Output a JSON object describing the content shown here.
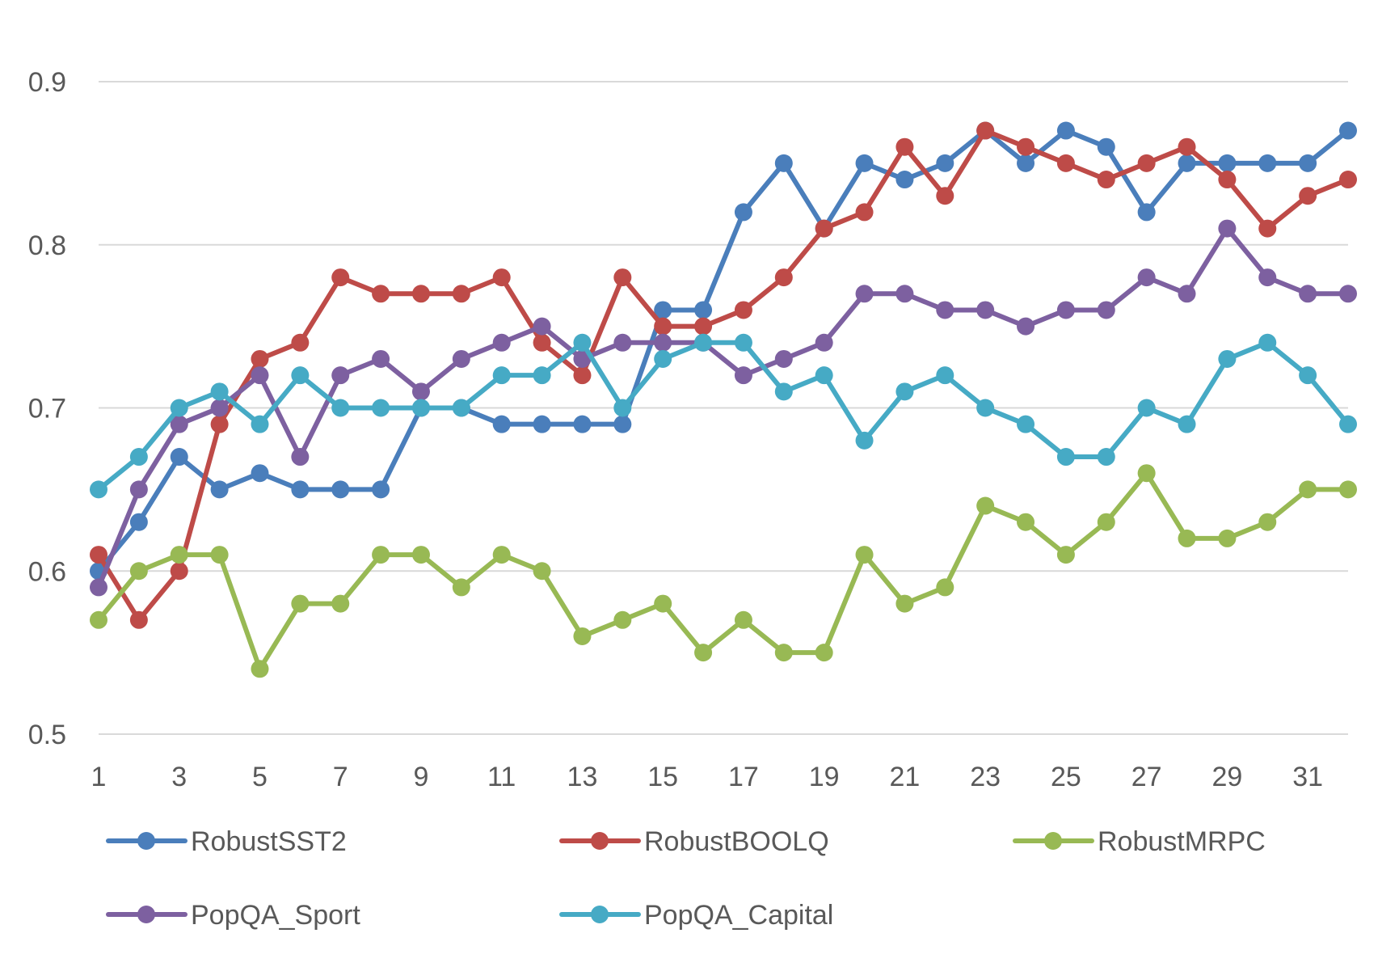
{
  "chart_data": {
    "type": "line",
    "title": "",
    "xlabel": "",
    "ylabel": "",
    "x": [
      1,
      2,
      3,
      4,
      5,
      6,
      7,
      8,
      9,
      10,
      11,
      12,
      13,
      14,
      15,
      16,
      17,
      18,
      19,
      20,
      21,
      22,
      23,
      24,
      25,
      26,
      27,
      28,
      29,
      30,
      31,
      32
    ],
    "x_tick_labels": [
      "1",
      "3",
      "5",
      "7",
      "9",
      "11",
      "13",
      "15",
      "17",
      "19",
      "21",
      "23",
      "25",
      "27",
      "29",
      "31"
    ],
    "ylim": [
      0.5,
      0.9
    ],
    "y_ticks": [
      "0.5",
      "0.6",
      "0.7",
      "0.8",
      "0.9"
    ],
    "grid": true,
    "legend_position": "bottom",
    "series": [
      {
        "name": "RobustSST2",
        "color": "#4a7ebb",
        "values": [
          0.6,
          0.63,
          0.67,
          0.65,
          0.66,
          0.65,
          0.65,
          0.65,
          0.7,
          0.7,
          0.69,
          0.69,
          0.69,
          0.69,
          0.76,
          0.76,
          0.82,
          0.85,
          0.81,
          0.85,
          0.84,
          0.85,
          0.87,
          0.85,
          0.87,
          0.86,
          0.82,
          0.85,
          0.85,
          0.85,
          0.85,
          0.87
        ]
      },
      {
        "name": "RobustBOOLQ",
        "color": "#be4b48",
        "values": [
          0.61,
          0.57,
          0.6,
          0.69,
          0.73,
          0.74,
          0.78,
          0.77,
          0.77,
          0.77,
          0.78,
          0.74,
          0.72,
          0.78,
          0.75,
          0.75,
          0.76,
          0.78,
          0.81,
          0.82,
          0.86,
          0.83,
          0.87,
          0.86,
          0.85,
          0.84,
          0.85,
          0.86,
          0.84,
          0.81,
          0.83,
          0.84
        ]
      },
      {
        "name": "RobustMRPC",
        "color": "#98b954",
        "values": [
          0.57,
          0.6,
          0.61,
          0.61,
          0.54,
          0.58,
          0.58,
          0.61,
          0.61,
          0.59,
          0.61,
          0.6,
          0.56,
          0.57,
          0.58,
          0.55,
          0.57,
          0.55,
          0.55,
          0.61,
          0.58,
          0.59,
          0.64,
          0.63,
          0.61,
          0.63,
          0.66,
          0.62,
          0.62,
          0.63,
          0.65,
          0.65
        ]
      },
      {
        "name": "PopQA_Sport",
        "color": "#7d60a0",
        "values": [
          0.59,
          0.65,
          0.69,
          0.7,
          0.72,
          0.67,
          0.72,
          0.73,
          0.71,
          0.73,
          0.74,
          0.75,
          0.73,
          0.74,
          0.74,
          0.74,
          0.72,
          0.73,
          0.74,
          0.77,
          0.77,
          0.76,
          0.76,
          0.75,
          0.76,
          0.76,
          0.78,
          0.77,
          0.81,
          0.78,
          0.77,
          0.77
        ]
      },
      {
        "name": "PopQA_Capital",
        "color": "#46aac5",
        "values": [
          0.65,
          0.67,
          0.7,
          0.71,
          0.69,
          0.72,
          0.7,
          0.7,
          0.7,
          0.7,
          0.72,
          0.72,
          0.74,
          0.7,
          0.73,
          0.74,
          0.74,
          0.71,
          0.72,
          0.68,
          0.71,
          0.72,
          0.7,
          0.69,
          0.67,
          0.67,
          0.7,
          0.69,
          0.73,
          0.74,
          0.72,
          0.69
        ]
      }
    ]
  }
}
